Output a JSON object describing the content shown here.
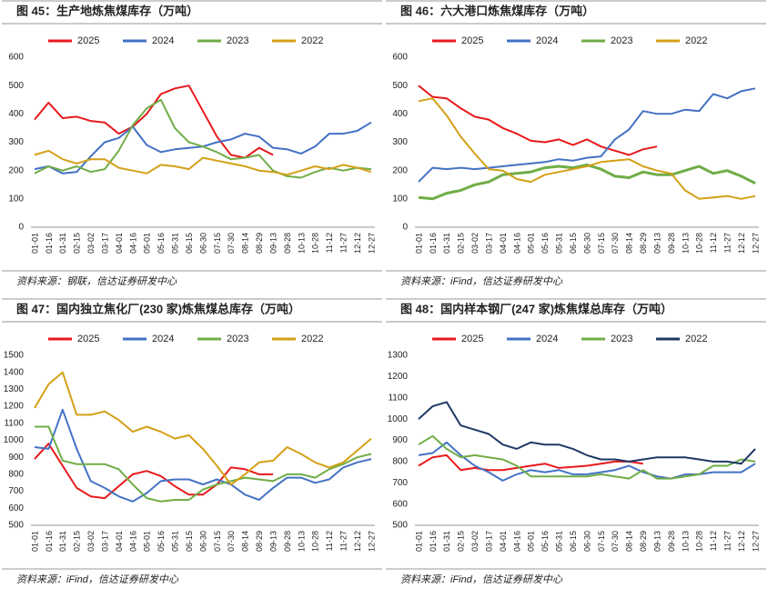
{
  "chart_data": [
    {
      "type": "line",
      "title": "图 45：生产地炼焦煤库存（万吨）",
      "source": "资料来源：钢联，信达证券研发中心",
      "categories": [
        "01-01",
        "01-16",
        "01-31",
        "02-15",
        "03-02",
        "03-17",
        "04-01",
        "04-16",
        "05-01",
        "05-16",
        "05-31",
        "06-15",
        "06-30",
        "07-15",
        "07-30",
        "08-14",
        "08-29",
        "09-13",
        "09-28",
        "10-13",
        "10-28",
        "11-12",
        "11-27",
        "12-12",
        "12-27"
      ],
      "ylim": [
        0,
        600
      ],
      "yticks": [
        0,
        100,
        200,
        300,
        400,
        500,
        600
      ],
      "grid": false,
      "series": [
        {
          "name": "2025",
          "color": "#e8191c",
          "values": [
            380,
            440,
            385,
            390,
            375,
            370,
            330,
            355,
            400,
            470,
            490,
            500,
            410,
            320,
            255,
            245,
            280,
            255,
            null,
            null,
            null,
            null,
            null,
            null,
            null
          ]
        },
        {
          "name": "2024",
          "color": "#4472c4",
          "values": [
            205,
            215,
            190,
            195,
            250,
            300,
            315,
            355,
            290,
            265,
            275,
            280,
            285,
            300,
            310,
            330,
            320,
            280,
            275,
            260,
            285,
            330,
            330,
            340,
            370
          ]
        },
        {
          "name": "2023",
          "color": "#70ad47",
          "values": [
            190,
            215,
            200,
            215,
            195,
            205,
            270,
            360,
            420,
            450,
            350,
            300,
            285,
            265,
            240,
            245,
            255,
            200,
            180,
            175,
            195,
            210,
            200,
            210,
            205
          ]
        },
        {
          "name": "2022",
          "color": "#d4a017",
          "values": [
            255,
            270,
            240,
            225,
            240,
            240,
            210,
            200,
            190,
            220,
            215,
            205,
            245,
            235,
            225,
            215,
            200,
            195,
            185,
            200,
            215,
            205,
            220,
            210,
            195
          ]
        }
      ]
    },
    {
      "type": "line",
      "title": "图 46：六大港口炼焦煤库存（万吨）",
      "source": "资料来源：iFind，信达证券研发中心",
      "categories": [
        "01-01",
        "01-16",
        "01-31",
        "02-15",
        "03-02",
        "03-17",
        "04-01",
        "04-16",
        "05-01",
        "05-16",
        "05-31",
        "06-15",
        "06-30",
        "07-15",
        "07-30",
        "08-14",
        "08-29",
        "09-13",
        "09-28",
        "10-13",
        "10-28",
        "11-12",
        "11-27",
        "12-12",
        "12-27"
      ],
      "ylim": [
        0,
        600
      ],
      "yticks": [
        0,
        100,
        200,
        300,
        400,
        500,
        600
      ],
      "grid": false,
      "series": [
        {
          "name": "2025",
          "color": "#e8191c",
          "values": [
            500,
            460,
            455,
            420,
            390,
            380,
            350,
            330,
            305,
            300,
            310,
            290,
            310,
            285,
            270,
            255,
            275,
            285,
            null,
            null,
            null,
            null,
            null,
            null,
            null
          ]
        },
        {
          "name": "2024",
          "color": "#4472c4",
          "values": [
            160,
            210,
            205,
            210,
            205,
            210,
            215,
            220,
            225,
            230,
            240,
            235,
            245,
            250,
            310,
            345,
            410,
            400,
            400,
            415,
            410,
            470,
            455,
            480,
            490
          ]
        },
        {
          "name": "2023",
          "color": "#70ad47",
          "values": [
            105,
            100,
            120,
            130,
            150,
            160,
            185,
            190,
            195,
            210,
            215,
            210,
            220,
            205,
            180,
            175,
            195,
            185,
            185,
            200,
            215,
            190,
            200,
            180,
            155
          ]
        },
        {
          "name": "2022",
          "color": "#d4a017",
          "values": [
            445,
            455,
            395,
            320,
            260,
            205,
            200,
            170,
            160,
            185,
            195,
            205,
            215,
            230,
            235,
            240,
            215,
            200,
            190,
            130,
            100,
            105,
            110,
            100,
            110
          ]
        }
      ]
    },
    {
      "type": "line",
      "title": "图 47：国内独立焦化厂(230 家)炼焦煤总库存（万吨）",
      "source": "资料来源：iFind，信达证券研发中心",
      "categories": [
        "01-01",
        "01-16",
        "01-31",
        "02-15",
        "03-02",
        "03-17",
        "04-01",
        "04-16",
        "05-01",
        "05-16",
        "05-31",
        "06-15",
        "06-30",
        "07-15",
        "07-30",
        "08-14",
        "08-29",
        "09-13",
        "09-28",
        "10-13",
        "10-28",
        "11-12",
        "11-27",
        "12-12",
        "12-27"
      ],
      "ylim": [
        500,
        1500
      ],
      "yticks": [
        500,
        600,
        700,
        800,
        900,
        1000,
        1100,
        1200,
        1300,
        1400,
        1500
      ],
      "grid": false,
      "series": [
        {
          "name": "2025",
          "color": "#e8191c",
          "values": [
            890,
            980,
            850,
            720,
            670,
            660,
            730,
            800,
            820,
            790,
            730,
            680,
            680,
            740,
            840,
            830,
            800,
            800,
            null,
            null,
            null,
            null,
            null,
            null,
            null
          ]
        },
        {
          "name": "2024",
          "color": "#4472c4",
          "values": [
            960,
            950,
            1180,
            950,
            760,
            720,
            670,
            640,
            690,
            760,
            770,
            770,
            740,
            770,
            740,
            680,
            650,
            720,
            780,
            780,
            750,
            770,
            840,
            870,
            890
          ]
        },
        {
          "name": "2023",
          "color": "#70ad47",
          "values": [
            1080,
            1080,
            880,
            860,
            860,
            860,
            830,
            740,
            660,
            640,
            650,
            650,
            710,
            740,
            760,
            780,
            770,
            760,
            800,
            800,
            780,
            830,
            860,
            900,
            920
          ]
        },
        {
          "name": "2022",
          "color": "#d4a017",
          "values": [
            1190,
            1330,
            1400,
            1150,
            1150,
            1170,
            1120,
            1050,
            1080,
            1050,
            1010,
            1030,
            950,
            850,
            740,
            800,
            870,
            880,
            960,
            920,
            870,
            840,
            870,
            940,
            1010
          ]
        }
      ]
    },
    {
      "type": "line",
      "title": "图 48：国内样本钢厂(247 家)炼焦煤总库存（万吨）",
      "source": "资料来源：iFind，信达证券研发中心",
      "categories": [
        "01-01",
        "01-16",
        "01-31",
        "02-15",
        "03-02",
        "03-17",
        "04-01",
        "04-16",
        "05-01",
        "05-16",
        "05-31",
        "06-15",
        "06-30",
        "07-15",
        "07-30",
        "08-14",
        "08-29",
        "09-13",
        "09-28",
        "10-13",
        "10-28",
        "11-12",
        "11-27",
        "12-12",
        "12-27"
      ],
      "ylim": [
        500,
        1300
      ],
      "yticks": [
        500,
        600,
        700,
        800,
        900,
        1000,
        1100,
        1200,
        1300
      ],
      "grid": false,
      "series": [
        {
          "name": "2025",
          "color": "#e8191c",
          "values": [
            780,
            820,
            830,
            760,
            770,
            760,
            760,
            770,
            780,
            790,
            770,
            775,
            780,
            790,
            800,
            800,
            790,
            null,
            null,
            null,
            null,
            null,
            null,
            null,
            null
          ]
        },
        {
          "name": "2024",
          "color": "#4472c4",
          "values": [
            830,
            840,
            890,
            830,
            780,
            750,
            710,
            740,
            760,
            750,
            760,
            740,
            740,
            750,
            760,
            780,
            750,
            730,
            720,
            740,
            740,
            750,
            750,
            750,
            790
          ]
        },
        {
          "name": "2023",
          "color": "#70ad47",
          "values": [
            880,
            920,
            860,
            820,
            830,
            820,
            810,
            780,
            730,
            730,
            730,
            730,
            730,
            740,
            730,
            720,
            760,
            720,
            720,
            730,
            740,
            780,
            780,
            810,
            800
          ]
        },
        {
          "name": "2022",
          "color": "#1f3864",
          "values": [
            1000,
            1060,
            1080,
            970,
            950,
            930,
            880,
            860,
            890,
            880,
            880,
            860,
            830,
            810,
            810,
            800,
            810,
            820,
            820,
            820,
            810,
            800,
            800,
            790,
            860
          ]
        }
      ]
    }
  ]
}
